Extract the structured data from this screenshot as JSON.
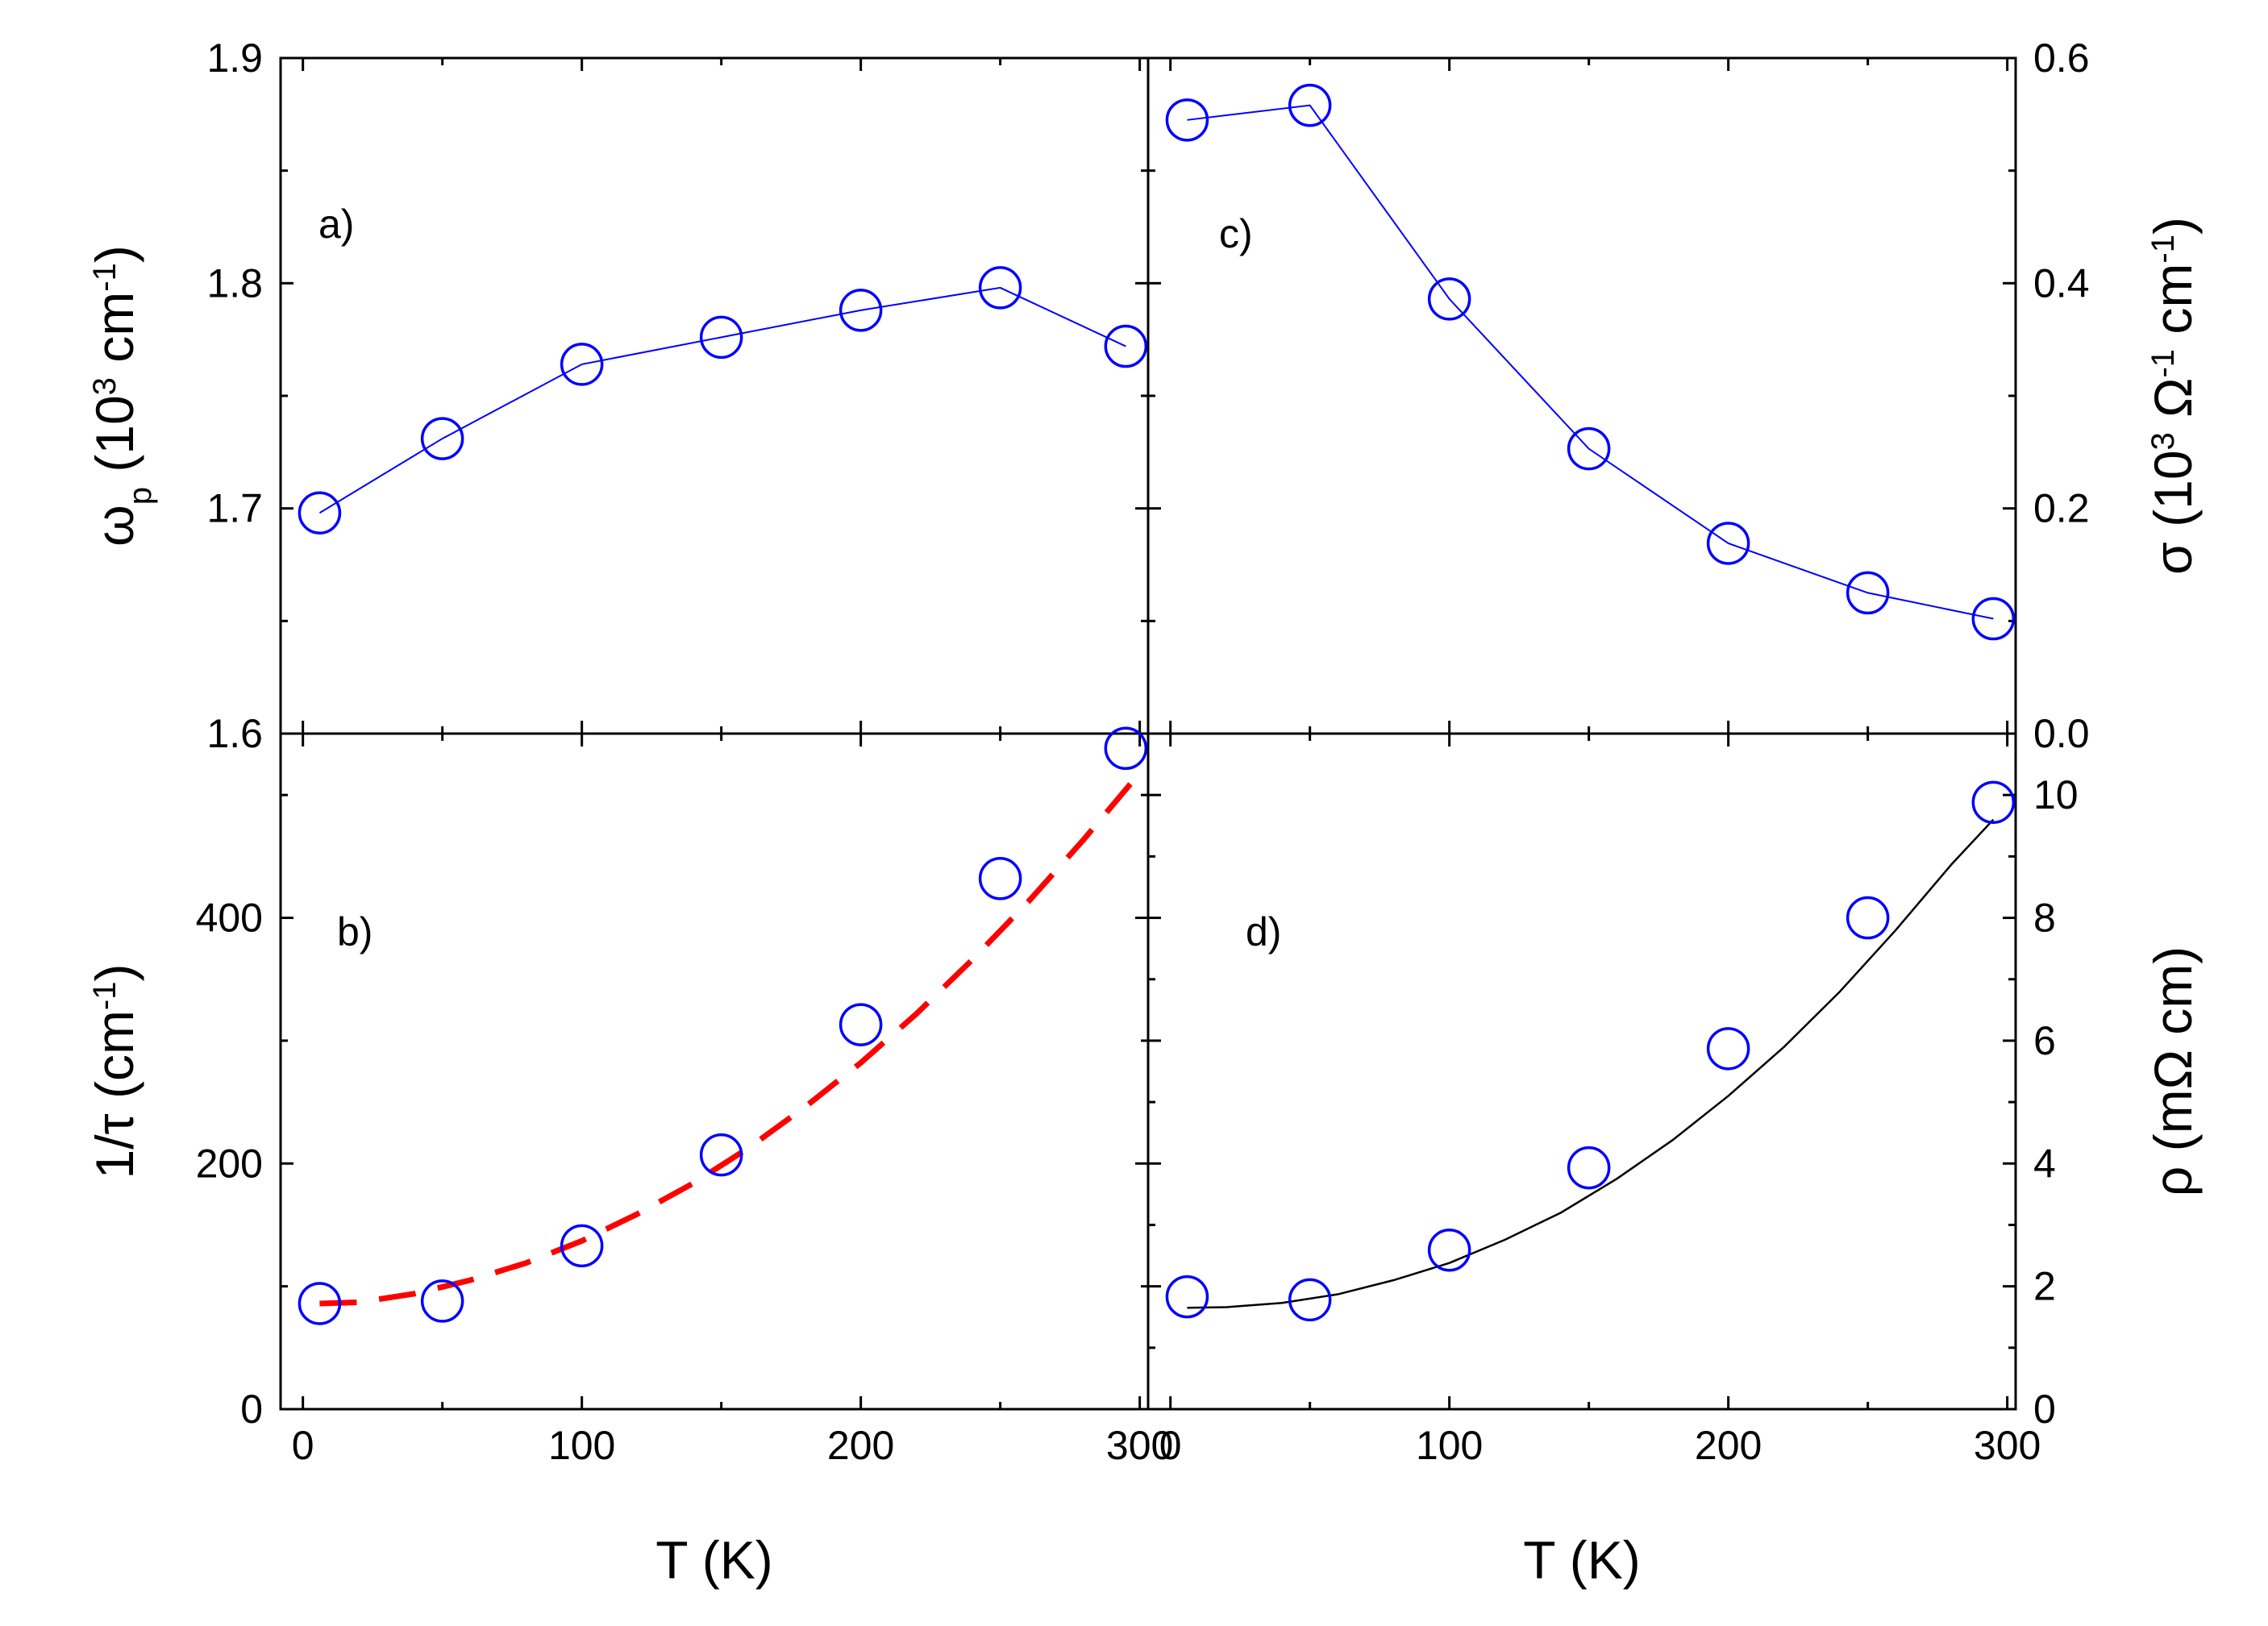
{
  "chart_data": [
    {
      "id": "a",
      "type": "scatter",
      "panel_label": "a)",
      "xlabel": "T (K)",
      "ylabel": {
        "base": "ω",
        "sub": "p",
        "text": " (10",
        "sup": "3",
        "text2": " cm",
        "sup2": "-1",
        "text3": ")"
      },
      "xlim": [
        -8,
        303
      ],
      "ylim": [
        1.6,
        1.9
      ],
      "y_ticks": [
        1.6,
        1.7,
        1.8,
        1.9
      ],
      "y_tick_labels": [
        "1.6",
        "1.7",
        "1.8",
        "1.9"
      ],
      "series": [
        {
          "name": "omega_p",
          "style": "open-circle-line",
          "color": "#0000ff",
          "x": [
            6,
            50,
            100,
            150,
            200,
            250,
            295
          ],
          "y": [
            1.698,
            1.731,
            1.764,
            1.776,
            1.788,
            1.798,
            1.772
          ]
        }
      ]
    },
    {
      "id": "b",
      "type": "scatter",
      "panel_label": "b)",
      "xlabel": "T (K)",
      "ylabel": {
        "text": "1/τ (cm",
        "sup": "-1",
        "text2": ")"
      },
      "xlim": [
        -8,
        303
      ],
      "ylim": [
        0,
        550
      ],
      "x_ticks": [
        0,
        100,
        200,
        300
      ],
      "x_tick_labels": [
        "0",
        "100",
        "200",
        "300"
      ],
      "y_ticks": [
        0,
        200,
        400
      ],
      "y_tick_labels": [
        "0",
        "200",
        "400"
      ],
      "series": [
        {
          "name": "1/tau",
          "style": "open-circle",
          "color": "#0000ff",
          "x": [
            6,
            50,
            100,
            150,
            200,
            250,
            295
          ],
          "y": [
            86,
            88,
            133,
            207,
            313,
            432,
            538
          ]
        },
        {
          "name": "fit",
          "style": "dashed-line",
          "color": "#ff0000",
          "x": [
            6,
            20,
            40,
            60,
            80,
            100,
            120,
            140,
            160,
            180,
            200,
            220,
            240,
            260,
            280,
            300
          ],
          "y": [
            86,
            87,
            94,
            105,
            119,
            137,
            159,
            184,
            213,
            246,
            282,
            322,
            366,
            413,
            464,
            518
          ]
        }
      ]
    },
    {
      "id": "c",
      "type": "scatter",
      "panel_label": "c)",
      "xlabel": "T (K)",
      "ylabel": {
        "text": "σ (10",
        "sup": "3",
        "text2": " Ω",
        "sup2": "-1",
        "text3": " cm",
        "sup3": "-1",
        "text4": ")"
      },
      "xlim": [
        -8,
        303
      ],
      "ylim": [
        0.0,
        0.6
      ],
      "y_ticks": [
        0.0,
        0.2,
        0.4,
        0.6
      ],
      "y_tick_labels": [
        "0.0",
        "0.2",
        "0.4",
        "0.6"
      ],
      "series": [
        {
          "name": "sigma",
          "style": "open-circle-line",
          "color": "#0000ff",
          "x": [
            6,
            50,
            100,
            150,
            200,
            250,
            295
          ],
          "y": [
            0.545,
            0.558,
            0.386,
            0.253,
            0.169,
            0.125,
            0.102
          ]
        }
      ]
    },
    {
      "id": "d",
      "type": "scatter",
      "panel_label": "d)",
      "xlabel": "T (K)",
      "ylabel": {
        "text": "ρ (mΩ cm)"
      },
      "xlim": [
        -8,
        303
      ],
      "ylim": [
        0,
        11
      ],
      "x_ticks": [
        0,
        100,
        200,
        300
      ],
      "x_tick_labels": [
        "0",
        "100",
        "200",
        "300"
      ],
      "y_ticks": [
        0,
        2,
        4,
        6,
        8,
        10
      ],
      "y_tick_labels": [
        "0",
        "2",
        "4",
        "6",
        "8",
        "10"
      ],
      "series": [
        {
          "name": "rho",
          "style": "open-circle",
          "color": "#0000ff",
          "x": [
            6,
            50,
            100,
            150,
            200,
            250,
            295
          ],
          "y": [
            1.83,
            1.78,
            2.59,
            3.93,
            5.87,
            8.0,
            9.88
          ]
        },
        {
          "name": "fit",
          "style": "solid-line",
          "color": "#000000",
          "x": [
            6,
            20,
            40,
            60,
            80,
            100,
            120,
            140,
            160,
            180,
            200,
            220,
            240,
            260,
            280,
            295
          ],
          "y": [
            1.65,
            1.66,
            1.73,
            1.87,
            2.1,
            2.38,
            2.76,
            3.2,
            3.75,
            4.38,
            5.1,
            5.9,
            6.8,
            7.8,
            8.87,
            9.6
          ]
        }
      ]
    }
  ]
}
